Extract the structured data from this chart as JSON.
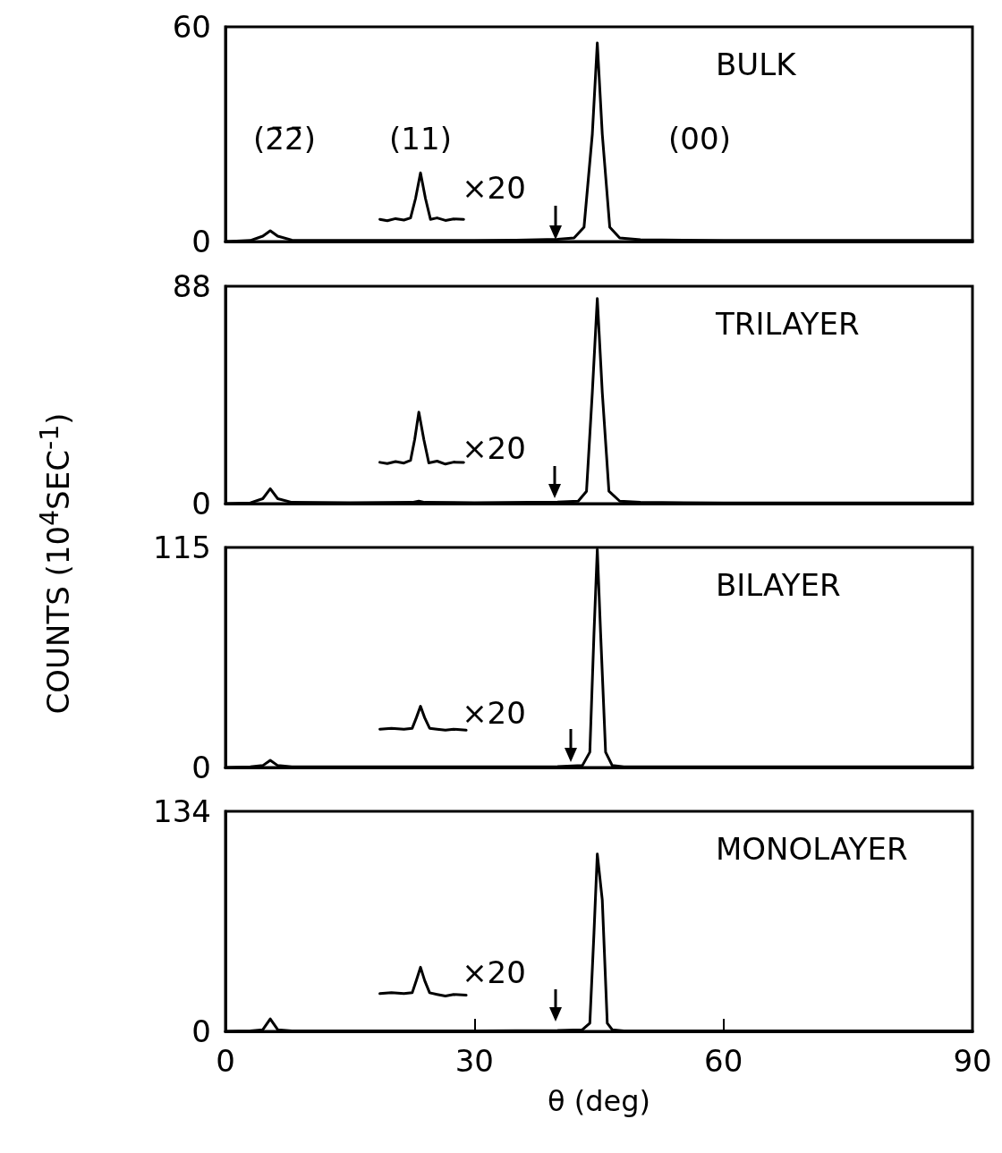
{
  "chart_data": [
    {
      "type": "line",
      "title": "BULK",
      "xlim": [
        0,
        90
      ],
      "xticks": [
        0,
        30,
        60,
        90
      ],
      "ylim": [
        0,
        60
      ],
      "yticks": [
        0,
        60
      ],
      "tick_labels": "y",
      "grid": false,
      "marker": "none",
      "line_style": "solid",
      "series": [
        {
          "color": "#000000",
          "x": [
            0,
            3,
            4.5,
            5.4,
            6.3,
            8,
            15,
            20,
            25,
            30,
            35,
            40,
            42,
            43.2,
            44.2,
            44.8,
            45.4,
            46.3,
            47.5,
            50,
            60,
            75,
            90
          ],
          "values": [
            0,
            0.3,
            1.5,
            3,
            1.5,
            0.4,
            0.3,
            0.3,
            0.3,
            0.3,
            0.4,
            0.6,
            1,
            4,
            30,
            55.5,
            30,
            4,
            1,
            0.5,
            0.3,
            0.3,
            0.3
          ]
        },
        {
          "color": "#000000",
          "x": [
            18.6,
            19.5,
            20.5,
            21.5,
            22.3,
            22.9,
            23.5,
            24.1,
            24.7,
            25.5,
            26.5,
            27.5,
            28.7
          ],
          "values": [
            6.2,
            5.8,
            6.4,
            6,
            6.6,
            12,
            19.2,
            12,
            6.2,
            6.6,
            5.9,
            6.3,
            6.2
          ]
        }
      ],
      "annotations": [
        "(2̄2̄)",
        "(11)",
        "(00)",
        "×20"
      ]
    },
    {
      "type": "line",
      "title": "TRILAYER",
      "ylabel": "COUNTS (10$^{4}$SEC$^{-1}$)",
      "xlim": [
        0,
        90
      ],
      "xticks": [
        0,
        30,
        60,
        90
      ],
      "ylim": [
        0,
        88
      ],
      "yticks": [
        0,
        88
      ],
      "tick_labels": "y",
      "grid": false,
      "marker": "none",
      "line_style": "solid",
      "series": [
        {
          "color": "#000000",
          "x": [
            0,
            3,
            4.5,
            5.4,
            6.3,
            8,
            15,
            22.5,
            23.3,
            24,
            30,
            40,
            42.5,
            43.5,
            44.2,
            44.8,
            45.4,
            46.2,
            47.5,
            50,
            60,
            75,
            90
          ],
          "values": [
            0,
            0.3,
            2,
            6,
            2,
            0.5,
            0.4,
            0.5,
            1,
            0.5,
            0.4,
            0.6,
            1,
            5,
            45,
            83,
            45,
            5,
            1,
            0.5,
            0.3,
            0.3,
            0.3
          ]
        },
        {
          "color": "#000000",
          "x": [
            18.6,
            19.5,
            20.5,
            21.5,
            22.3,
            22.8,
            23.3,
            23.9,
            24.5,
            25.5,
            26.5,
            27.5,
            28.7
          ],
          "values": [
            16.7,
            16.2,
            17,
            16.4,
            17.5,
            26,
            37,
            26,
            16.5,
            17.2,
            16,
            16.8,
            16.7
          ]
        }
      ],
      "annotations": [
        "×20"
      ]
    },
    {
      "type": "line",
      "title": "BILAYER",
      "xlim": [
        0,
        90
      ],
      "xticks": [
        0,
        30,
        60,
        90
      ],
      "ylim": [
        0,
        115
      ],
      "yticks": [
        0,
        115
      ],
      "tick_labels": "y",
      "grid": false,
      "marker": "none",
      "line_style": "solid",
      "series": [
        {
          "color": "#000000",
          "x": [
            0,
            3,
            4.5,
            5.4,
            6.3,
            8,
            15,
            30,
            40,
            43,
            43.9,
            44.4,
            44.8,
            45.2,
            45.8,
            46.6,
            48,
            60,
            75,
            90
          ],
          "values": [
            0,
            0.3,
            1,
            3.7,
            1,
            0.3,
            0.3,
            0.3,
            0.5,
            1,
            8,
            70,
            114,
            70,
            8,
            1,
            0.3,
            0.3,
            0.3,
            0.3
          ]
        },
        {
          "color": "#000000",
          "x": [
            18.6,
            20,
            21.5,
            22.5,
            23,
            23.5,
            24,
            24.6,
            25.5,
            26.5,
            27.5,
            29
          ],
          "values": [
            20,
            20.5,
            20,
            20.5,
            26,
            32,
            26,
            20.5,
            20,
            19.5,
            20,
            19.5
          ]
        }
      ],
      "annotations": [
        "×20"
      ]
    },
    {
      "type": "line",
      "title": "MONOLAYER",
      "xlabel": "θ (deg)",
      "xlim": [
        0,
        90
      ],
      "xticks": [
        0,
        30,
        60,
        90
      ],
      "ylim": [
        0,
        134
      ],
      "yticks": [
        0,
        134
      ],
      "grid": false,
      "marker": "none",
      "line_style": "solid",
      "series": [
        {
          "color": "#000000",
          "x": [
            0,
            3,
            4.5,
            5.4,
            6.3,
            8,
            15,
            30,
            40,
            43,
            43.9,
            44.4,
            44.8,
            45.4,
            46,
            46.6,
            48,
            60,
            75,
            90
          ],
          "values": [
            0,
            0.3,
            1,
            7.6,
            1,
            0.3,
            0.3,
            0.3,
            0.5,
            1,
            5,
            60,
            108,
            80,
            5,
            1,
            0.3,
            0.3,
            0.3,
            0.3
          ]
        },
        {
          "color": "#000000",
          "x": [
            18.6,
            20,
            21.5,
            22.5,
            23,
            23.5,
            24,
            24.6,
            25.5,
            26.5,
            27.5,
            29
          ],
          "values": [
            23,
            23.5,
            23,
            23.5,
            31,
            39,
            31,
            23.5,
            22.5,
            21.5,
            22.5,
            22
          ]
        }
      ],
      "annotations": [
        "×20"
      ]
    }
  ]
}
